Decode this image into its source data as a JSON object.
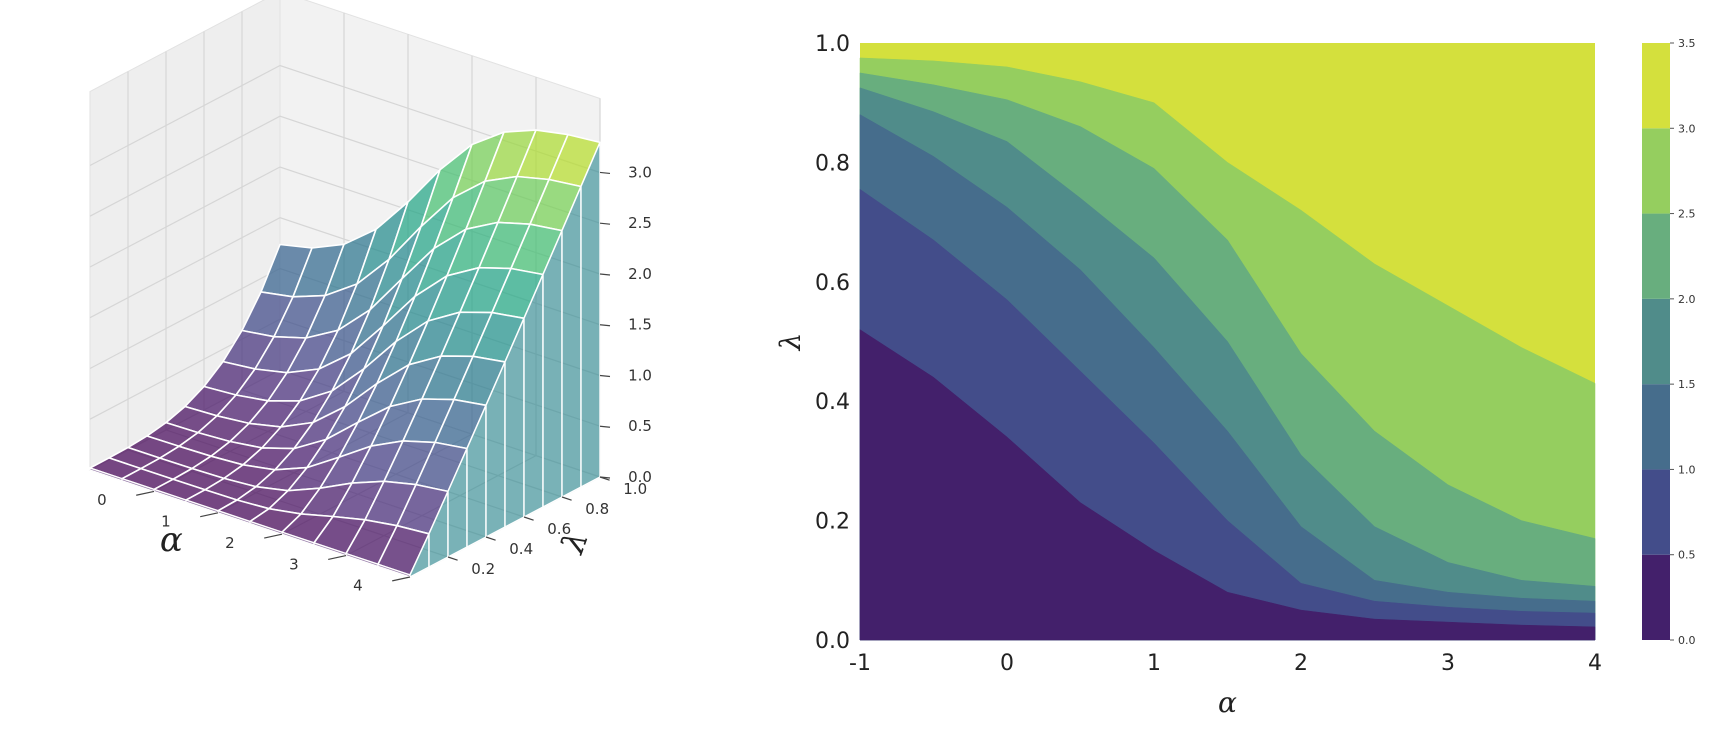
{
  "chart_data": [
    {
      "type": "surface3d",
      "x": [
        -1,
        -0.5,
        0,
        0.5,
        1,
        1.5,
        2,
        2.5,
        3,
        3.5,
        4
      ],
      "y": [
        0.0,
        0.1,
        0.2,
        0.3,
        0.4,
        0.5,
        0.6,
        0.7,
        0.8,
        0.9,
        1.0
      ],
      "z_formula_note": "",
      "xlabel": "α",
      "ylabel": "λ",
      "zlabel": "",
      "x_ticks": [
        "0",
        "1",
        "2",
        "3",
        "4"
      ],
      "y_ticks": [
        "0.2",
        "0.4",
        "0.6",
        "0.8",
        "1.0"
      ],
      "z_ticks": [
        "0.0",
        "0.5",
        "1.0",
        "1.5",
        "2.0",
        "2.5",
        "3.0"
      ],
      "zlim": [
        0,
        3.3
      ],
      "colormap": "viridis",
      "grid": true
    },
    {
      "type": "contourf",
      "xlabel": "α",
      "ylabel": "λ",
      "x_ticks": [
        "-1",
        "0",
        "1",
        "2",
        "3",
        "4"
      ],
      "y_ticks": [
        "0.0",
        "0.2",
        "0.4",
        "0.6",
        "0.8",
        "1.0"
      ],
      "xlim": [
        -1,
        4
      ],
      "ylim": [
        0,
        1
      ],
      "levels": [
        0.0,
        0.5,
        1.0,
        1.5,
        2.0,
        2.5,
        3.0,
        3.5
      ],
      "colorbar_ticks": [
        "0.0",
        "0.5",
        "1.0",
        "1.5",
        "2.0",
        "2.5",
        "3.0",
        "3.5"
      ],
      "level_colors": [
        "#43206b",
        "#434d8a",
        "#466d8c",
        "#508c8a",
        "#68ae7e",
        "#95ce5f",
        "#d4e03d"
      ],
      "boundaries": [
        {
          "level": 0.5,
          "points": [
            [
              -1,
              0.52
            ],
            [
              -0.5,
              0.44
            ],
            [
              0,
              0.34
            ],
            [
              0.5,
              0.23
            ],
            [
              1,
              0.15
            ],
            [
              1.5,
              0.08
            ],
            [
              2,
              0.05
            ],
            [
              2.5,
              0.035
            ],
            [
              3,
              0.03
            ],
            [
              3.5,
              0.025
            ],
            [
              4,
              0.022
            ]
          ]
        },
        {
          "level": 1.0,
          "points": [
            [
              -1,
              0.755
            ],
            [
              -0.5,
              0.67
            ],
            [
              0,
              0.57
            ],
            [
              0.5,
              0.45
            ],
            [
              1,
              0.33
            ],
            [
              1.5,
              0.2
            ],
            [
              2,
              0.095
            ],
            [
              2.5,
              0.065
            ],
            [
              3,
              0.055
            ],
            [
              3.5,
              0.048
            ],
            [
              4,
              0.045
            ]
          ]
        },
        {
          "level": 1.5,
          "points": [
            [
              -1,
              0.88
            ],
            [
              -0.5,
              0.81
            ],
            [
              0,
              0.725
            ],
            [
              0.5,
              0.62
            ],
            [
              1,
              0.49
            ],
            [
              1.5,
              0.35
            ],
            [
              2,
              0.19
            ],
            [
              2.5,
              0.1
            ],
            [
              3,
              0.08
            ],
            [
              3.5,
              0.07
            ],
            [
              4,
              0.065
            ]
          ]
        },
        {
          "level": 2.0,
          "points": [
            [
              -1,
              0.925
            ],
            [
              -0.5,
              0.885
            ],
            [
              0,
              0.835
            ],
            [
              0.5,
              0.74
            ],
            [
              1,
              0.64
            ],
            [
              1.5,
              0.5
            ],
            [
              2,
              0.31
            ],
            [
              2.5,
              0.19
            ],
            [
              3,
              0.13
            ],
            [
              3.5,
              0.1
            ],
            [
              4,
              0.09
            ]
          ]
        },
        {
          "level": 2.5,
          "points": [
            [
              -1,
              0.95
            ],
            [
              -0.5,
              0.93
            ],
            [
              0,
              0.905
            ],
            [
              0.5,
              0.86
            ],
            [
              1,
              0.79
            ],
            [
              1.5,
              0.67
            ],
            [
              2,
              0.48
            ],
            [
              2.5,
              0.35
            ],
            [
              3,
              0.26
            ],
            [
              3.5,
              0.2
            ],
            [
              4,
              0.17
            ]
          ]
        },
        {
          "level": 3.0,
          "points": [
            [
              -1,
              0.975
            ],
            [
              -0.5,
              0.97
            ],
            [
              0,
              0.96
            ],
            [
              0.5,
              0.935
            ],
            [
              1,
              0.9
            ],
            [
              1.5,
              0.8
            ],
            [
              2,
              0.72
            ],
            [
              2.5,
              0.63
            ],
            [
              3,
              0.56
            ],
            [
              3.5,
              0.49
            ],
            [
              4,
              0.43
            ]
          ]
        }
      ]
    }
  ]
}
